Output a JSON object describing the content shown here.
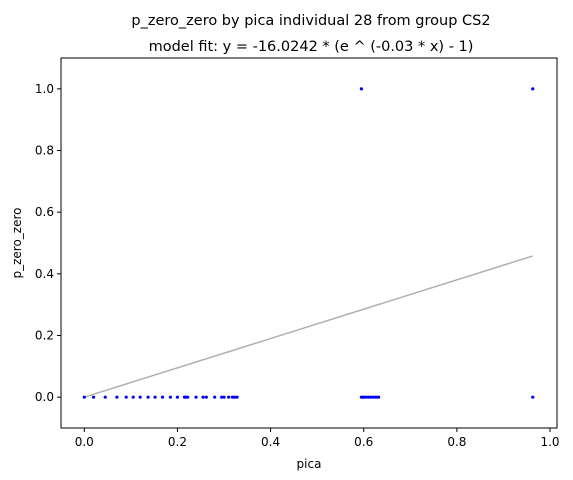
{
  "chart_data": {
    "type": "scatter",
    "title": "p_zero_zero by pica individual 28 from group CS2",
    "subtitle": "model fit: y = -16.0242 * (e ^ (-0.03 * x) - 1)",
    "xlabel": "pica",
    "ylabel": "p_zero_zero",
    "xlim": [
      -0.05,
      1.015
    ],
    "ylim": [
      -0.1,
      1.1
    ],
    "xticks": [
      "0.0",
      "0.2",
      "0.4",
      "0.6",
      "0.8",
      "1.0"
    ],
    "yticks": [
      "0.0",
      "0.2",
      "0.4",
      "0.6",
      "0.8",
      "1.0"
    ],
    "grid": false,
    "point_color": "#0000ff",
    "fit_color": "#b0b0b0",
    "points": [
      {
        "x": 0.0,
        "y": 0.0
      },
      {
        "x": 0.02,
        "y": 0.0
      },
      {
        "x": 0.045,
        "y": 0.0
      },
      {
        "x": 0.07,
        "y": 0.0
      },
      {
        "x": 0.09,
        "y": 0.0
      },
      {
        "x": 0.105,
        "y": 0.0
      },
      {
        "x": 0.12,
        "y": 0.0
      },
      {
        "x": 0.137,
        "y": 0.0
      },
      {
        "x": 0.152,
        "y": 0.0
      },
      {
        "x": 0.168,
        "y": 0.0
      },
      {
        "x": 0.185,
        "y": 0.0
      },
      {
        "x": 0.2,
        "y": 0.0
      },
      {
        "x": 0.215,
        "y": 0.0
      },
      {
        "x": 0.218,
        "y": 0.0
      },
      {
        "x": 0.222,
        "y": 0.0
      },
      {
        "x": 0.24,
        "y": 0.0
      },
      {
        "x": 0.255,
        "y": 0.0
      },
      {
        "x": 0.262,
        "y": 0.0
      },
      {
        "x": 0.28,
        "y": 0.0
      },
      {
        "x": 0.295,
        "y": 0.0
      },
      {
        "x": 0.3,
        "y": 0.0
      },
      {
        "x": 0.31,
        "y": 0.0
      },
      {
        "x": 0.318,
        "y": 0.0
      },
      {
        "x": 0.323,
        "y": 0.0
      },
      {
        "x": 0.328,
        "y": 0.0
      },
      {
        "x": 0.595,
        "y": 0.0
      },
      {
        "x": 0.598,
        "y": 0.0
      },
      {
        "x": 0.6,
        "y": 0.0
      },
      {
        "x": 0.605,
        "y": 0.0
      },
      {
        "x": 0.61,
        "y": 0.0
      },
      {
        "x": 0.615,
        "y": 0.0
      },
      {
        "x": 0.62,
        "y": 0.0
      },
      {
        "x": 0.625,
        "y": 0.0
      },
      {
        "x": 0.628,
        "y": 0.0
      },
      {
        "x": 0.632,
        "y": 0.0
      },
      {
        "x": 0.595,
        "y": 1.0
      },
      {
        "x": 0.963,
        "y": 0.0
      },
      {
        "x": 0.963,
        "y": 1.0
      }
    ],
    "fit_line": [
      {
        "x": 0.0,
        "y": 0.0
      },
      {
        "x": 0.963,
        "y": 0.458
      }
    ]
  }
}
